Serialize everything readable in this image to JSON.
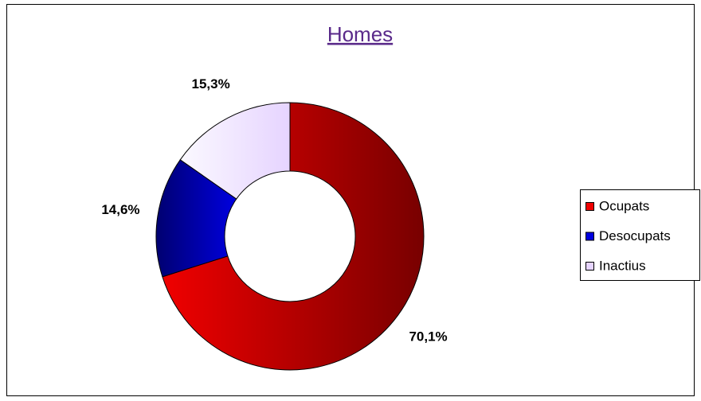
{
  "chart_data": {
    "type": "donut",
    "title": "Homes",
    "categories": [
      "Ocupats",
      "Desocupats",
      "Inactius"
    ],
    "values": [
      70.1,
      14.6,
      15.3
    ],
    "value_labels": [
      "70,1%",
      "14,6%",
      "15,3%"
    ],
    "colors": [
      "#f00000",
      "#0000e0",
      "#e6d4ff"
    ],
    "legend": "right"
  }
}
